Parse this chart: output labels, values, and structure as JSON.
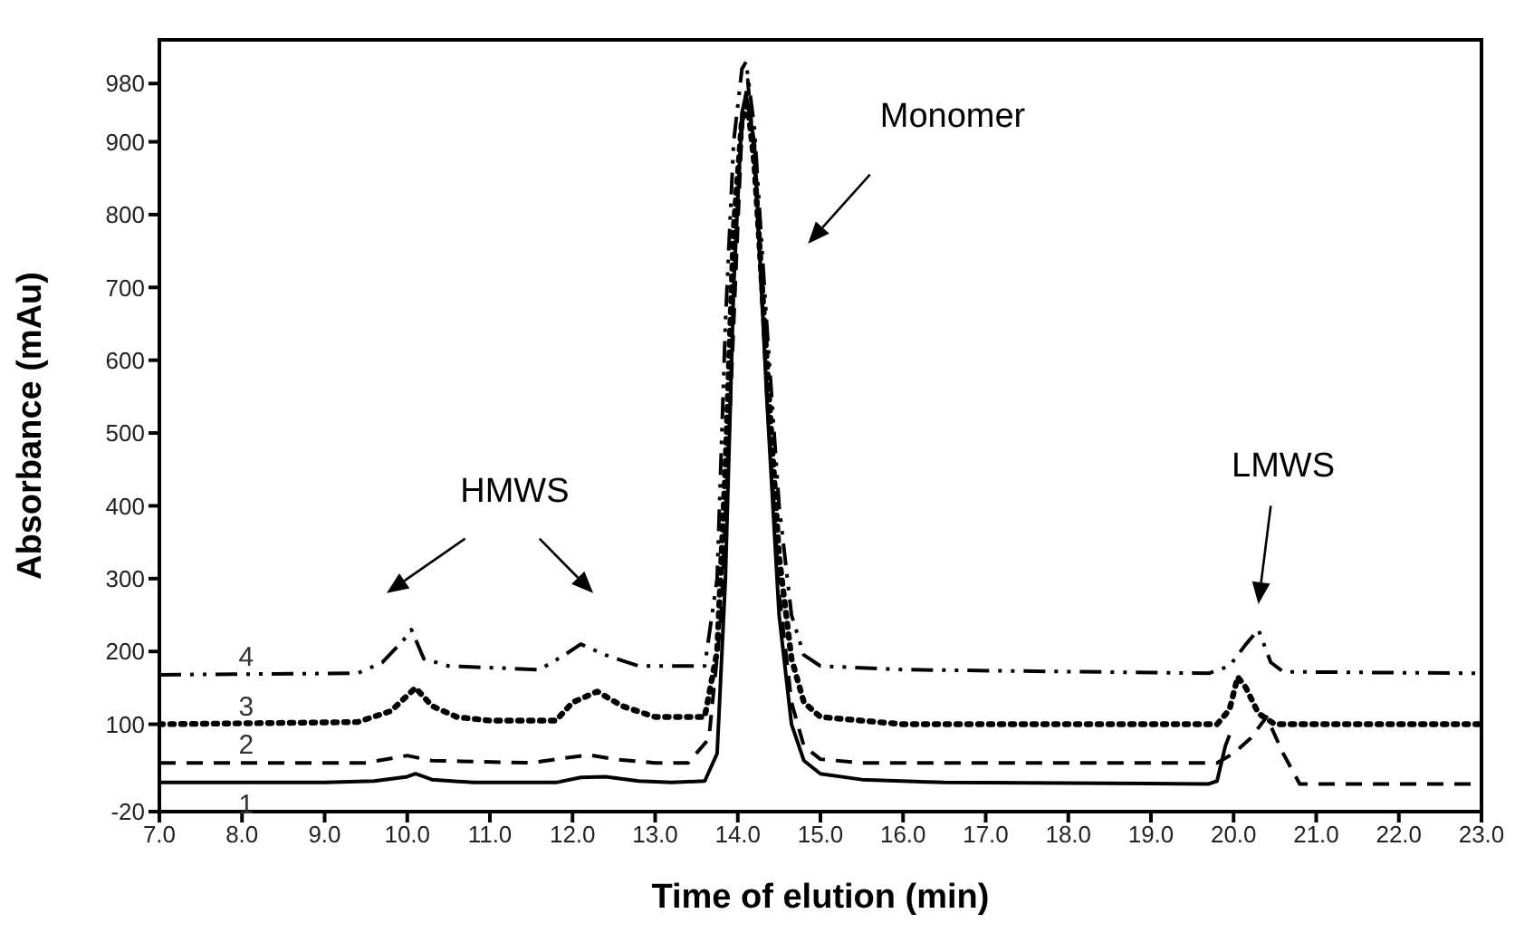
{
  "chart_data": {
    "type": "line",
    "xlabel": "Time of elution  (min)",
    "ylabel": "Absorbance (mAu)",
    "xlim": [
      7,
      23
    ],
    "ylim": [
      -20,
      1040
    ],
    "xticks": [
      {
        "value": 7,
        "label": "7.0"
      },
      {
        "value": 8,
        "label": "8.0"
      },
      {
        "value": 9,
        "label": "9.0"
      },
      {
        "value": 10,
        "label": "10.0"
      },
      {
        "value": 11,
        "label": "11.0"
      },
      {
        "value": 12,
        "label": "12.0"
      },
      {
        "value": 13,
        "label": "13.0"
      },
      {
        "value": 14,
        "label": "14.0"
      },
      {
        "value": 15,
        "label": "15.0"
      },
      {
        "value": 16,
        "label": "16.0"
      },
      {
        "value": 17,
        "label": "17.0"
      },
      {
        "value": 18,
        "label": "18.0"
      },
      {
        "value": 19,
        "label": "19.0"
      },
      {
        "value": 20,
        "label": "20.0"
      },
      {
        "value": 21,
        "label": "21.0"
      },
      {
        "value": 22,
        "label": "22.0"
      },
      {
        "value": 23,
        "label": "23.0"
      }
    ],
    "yticks": [
      -20,
      100,
      200,
      300,
      400,
      500,
      600,
      700,
      800,
      900,
      980
    ],
    "grid": false,
    "legend": false,
    "marker": "none",
    "annotations": [
      "HMWS",
      "Monomer",
      "LMWS"
    ],
    "series": [
      {
        "name": "1",
        "color": "#000000",
        "line_style": "solid",
        "x": [
          7,
          9,
          9.6,
          10,
          10.1,
          10.3,
          10.8,
          11.8,
          12.1,
          12.4,
          12.8,
          13.2,
          13.6,
          13.75,
          13.85,
          13.95,
          14.05,
          14.1,
          14.2,
          14.35,
          14.5,
          14.65,
          14.8,
          15,
          15.5,
          16.5,
          19.7,
          19.8,
          19.9,
          19.95
        ],
        "values": [
          20,
          20,
          22,
          28,
          32,
          24,
          20,
          20,
          27,
          28,
          22,
          20,
          22,
          60,
          300,
          700,
          940,
          965,
          900,
          550,
          250,
          100,
          50,
          32,
          24,
          20,
          18,
          22,
          70,
          85
        ]
      },
      {
        "name": "2",
        "color": "#000000",
        "line_style": "dashed",
        "x": [
          7,
          9.5,
          10,
          10.3,
          11.5,
          12,
          12.2,
          12.5,
          13,
          13.4,
          13.65,
          13.8,
          13.95,
          14.05,
          14.12,
          14.2,
          14.35,
          14.5,
          14.65,
          14.8,
          15,
          15.5,
          19.8,
          20,
          20.2,
          20.4,
          20.6,
          20.8,
          23
        ],
        "values": [
          47,
          47,
          57,
          50,
          47,
          55,
          58,
          52,
          47,
          47,
          80,
          250,
          650,
          920,
          985,
          880,
          560,
          280,
          130,
          70,
          52,
          47,
          47,
          60,
          80,
          110,
          60,
          18,
          18
        ]
      },
      {
        "name": "3",
        "color": "#000000",
        "line_style": "dotted",
        "x": [
          7,
          9.4,
          9.8,
          10.1,
          10.3,
          10.6,
          11,
          11.8,
          12,
          12.3,
          12.6,
          13,
          13.6,
          13.75,
          13.85,
          13.95,
          14.05,
          14.12,
          14.2,
          14.35,
          14.5,
          14.65,
          14.8,
          15,
          16,
          19.8,
          19.95,
          20.05,
          20.15,
          20.3,
          20.5,
          23
        ],
        "values": [
          100,
          103,
          118,
          150,
          125,
          110,
          105,
          105,
          130,
          145,
          125,
          110,
          110,
          200,
          450,
          780,
          930,
          950,
          870,
          600,
          330,
          190,
          130,
          110,
          100,
          100,
          120,
          165,
          150,
          115,
          100,
          100
        ]
      },
      {
        "name": "4",
        "color": "#000000",
        "line_style": "dashdot",
        "x": [
          7,
          9.4,
          9.7,
          9.95,
          10.05,
          10.2,
          10.5,
          11.6,
          11.9,
          12.1,
          12.4,
          12.8,
          13.6,
          13.75,
          13.85,
          13.95,
          14.05,
          14.1,
          14.2,
          14.35,
          14.5,
          14.65,
          14.8,
          15,
          16,
          19.7,
          19.95,
          20.15,
          20.3,
          20.45,
          20.6,
          23
        ],
        "values": [
          168,
          170,
          185,
          215,
          230,
          190,
          180,
          175,
          195,
          210,
          195,
          180,
          180,
          300,
          650,
          900,
          1000,
          1010,
          920,
          650,
          400,
          250,
          195,
          180,
          175,
          170,
          180,
          210,
          230,
          185,
          172,
          170
        ]
      }
    ]
  }
}
